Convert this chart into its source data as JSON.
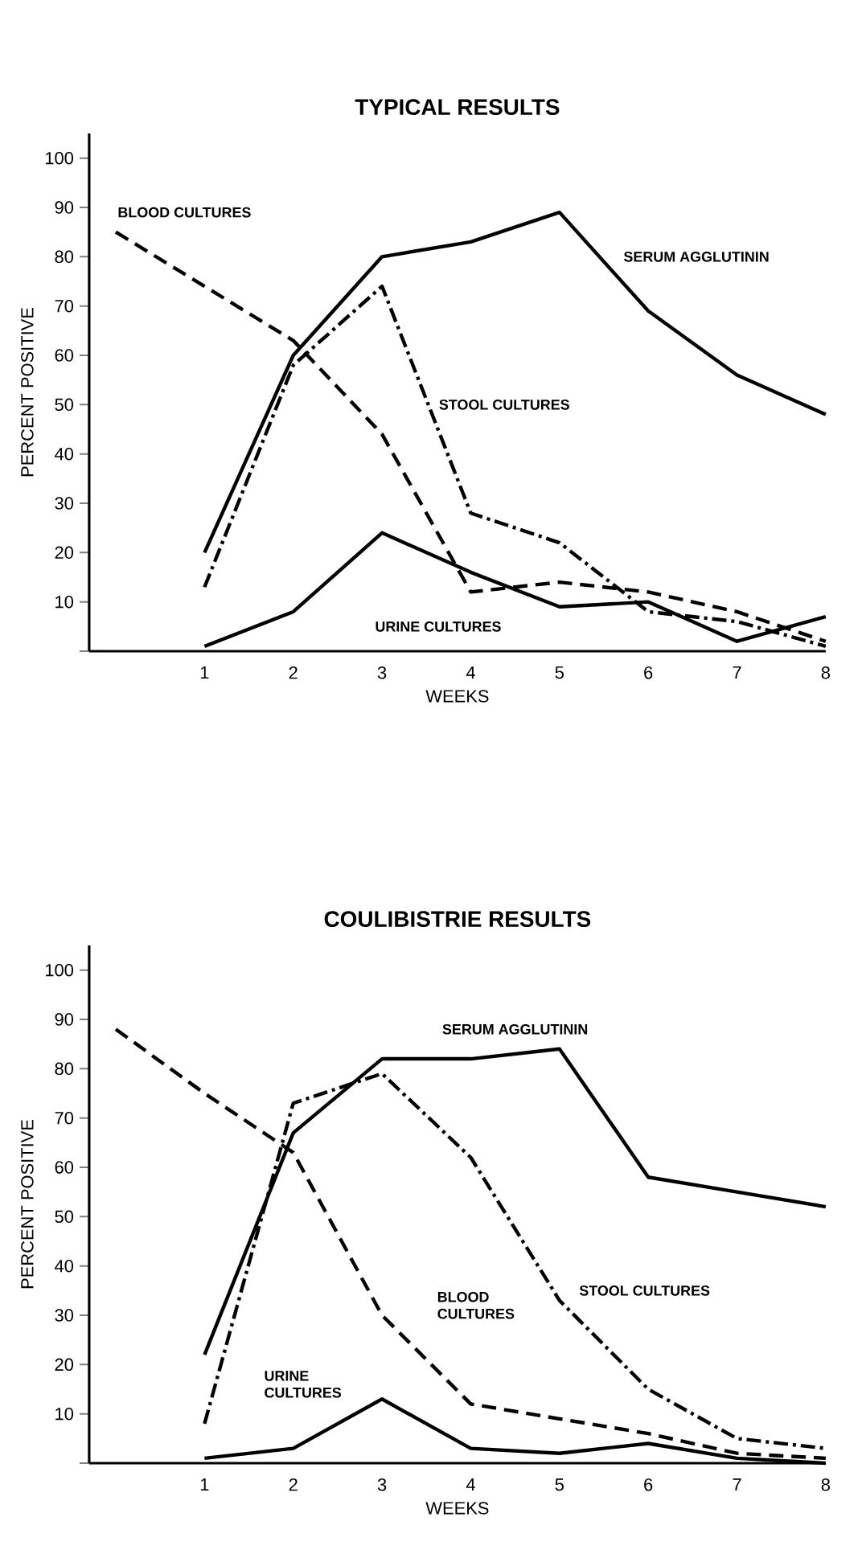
{
  "chart_data": [
    {
      "type": "line",
      "title": "TYPICAL RESULTS",
      "xlabel": "WEEKS",
      "ylabel": "PERCENT POSITIVE",
      "xlim": [
        -0.3,
        8
      ],
      "ylim": [
        0,
        105
      ],
      "xticks": [
        1,
        2,
        3,
        4,
        5,
        6,
        7,
        8
      ],
      "yticks": [
        {
          "value": 0,
          "label": null
        },
        10,
        20,
        30,
        40,
        50,
        60,
        70,
        80,
        90,
        100
      ],
      "series": [
        {
          "name": "BLOOD CULTURES",
          "color": "#000000",
          "line_style": "dashed",
          "x": [
            0,
            1,
            2,
            3,
            4,
            5,
            6,
            7,
            8
          ],
          "values": [
            85,
            74,
            63,
            44,
            12,
            14,
            12,
            8,
            2
          ]
        },
        {
          "name": "SERUM AGGLUTININ",
          "color": "#000000",
          "line_style": "solid",
          "x": [
            1,
            2,
            3,
            4,
            5,
            6,
            7,
            8
          ],
          "values": [
            20,
            60,
            80,
            83,
            89,
            69,
            56,
            48
          ]
        },
        {
          "name": "STOOL CULTURES",
          "color": "#000000",
          "line_style": "dashdot",
          "x": [
            1,
            2,
            3,
            4,
            5,
            6,
            7,
            8
          ],
          "values": [
            13,
            58,
            74,
            28,
            22,
            8,
            6,
            1
          ]
        },
        {
          "name": "URINE CULTURES",
          "color": "#000000",
          "line_style": "solid",
          "x": [
            1,
            2,
            3,
            4,
            5,
            6,
            7,
            8
          ],
          "values": [
            1,
            8,
            24,
            16,
            9,
            10,
            2,
            7
          ]
        }
      ]
    },
    {
      "type": "line",
      "title": "COULIBISTRIE RESULTS",
      "xlabel": "WEEKS",
      "ylabel": "PERCENT POSITIVE",
      "xlim": [
        -0.3,
        8
      ],
      "ylim": [
        0,
        105
      ],
      "xticks": [
        1,
        2,
        3,
        4,
        5,
        6,
        7,
        8
      ],
      "yticks": [
        {
          "value": 0,
          "label": null
        },
        10,
        20,
        30,
        40,
        50,
        60,
        70,
        80,
        90,
        100
      ],
      "series": [
        {
          "name": "BLOOD CULTURES",
          "color": "#000000",
          "line_style": "dashed",
          "x": [
            0,
            1,
            2,
            3,
            4,
            5,
            6,
            7,
            8
          ],
          "values": [
            88,
            75,
            63,
            30,
            12,
            9,
            6,
            2,
            1
          ]
        },
        {
          "name": "SERUM AGGLUTININ",
          "color": "#000000",
          "line_style": "solid",
          "x": [
            1,
            2,
            3,
            4,
            5,
            6,
            7,
            8
          ],
          "values": [
            22,
            67,
            82,
            82,
            84,
            58,
            55,
            52
          ]
        },
        {
          "name": "STOOL CULTURES",
          "color": "#000000",
          "line_style": "dashdot",
          "x": [
            1,
            2,
            3,
            4,
            5,
            6,
            7,
            8
          ],
          "values": [
            8,
            73,
            79,
            62,
            33,
            15,
            5,
            3
          ]
        },
        {
          "name": "URINE CULTURES",
          "color": "#000000",
          "line_style": "solid",
          "x": [
            1,
            2,
            3,
            4,
            5,
            6,
            7,
            8
          ],
          "values": [
            1,
            3,
            13,
            3,
            2,
            4,
            1,
            0
          ]
        }
      ]
    }
  ]
}
